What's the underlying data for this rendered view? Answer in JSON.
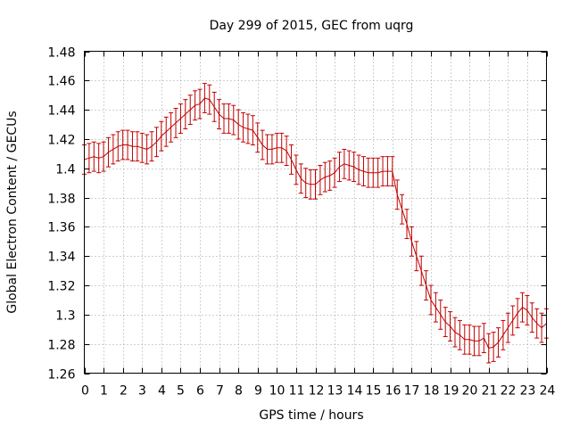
{
  "chart_data": {
    "type": "line",
    "title": "Day 299 of 2015, GEC from uqrg",
    "xlabel": "GPS time / hours",
    "ylabel": "Global Electron Content / GECUs",
    "xlim": [
      0,
      24
    ],
    "ylim": [
      1.26,
      1.48
    ],
    "xticks": [
      0,
      1,
      2,
      3,
      4,
      5,
      6,
      7,
      8,
      9,
      10,
      11,
      12,
      13,
      14,
      15,
      16,
      17,
      18,
      19,
      20,
      21,
      22,
      23,
      24
    ],
    "xtick_labels": [
      "0",
      "1",
      "2",
      "3",
      "4",
      "5",
      "6",
      "7",
      "8",
      "9",
      "10",
      "11",
      "12",
      "13",
      "14",
      "15",
      "16",
      "17",
      "18",
      "19",
      "20",
      "21",
      "22",
      "23",
      "24"
    ],
    "yticks": [
      1.26,
      1.28,
      1.3,
      1.32,
      1.34,
      1.36,
      1.38,
      1.4,
      1.42,
      1.44,
      1.46,
      1.48
    ],
    "ytick_labels": [
      "1.26",
      "1.28",
      "1.3",
      "1.32",
      "1.34",
      "1.36",
      "1.38",
      "1.4",
      "1.42",
      "1.44",
      "1.46",
      "1.48"
    ],
    "grid": true,
    "color": "#c00000",
    "series": [
      {
        "x": [
          0,
          0.25,
          0.5,
          0.75,
          1,
          1.25,
          1.5,
          1.75,
          2,
          2.25,
          2.5,
          2.75,
          3,
          3.25,
          3.5,
          3.75,
          4,
          4.25,
          4.5,
          4.75,
          5,
          5.25,
          5.5,
          5.75,
          6,
          6.25,
          6.5,
          6.75,
          7,
          7.25,
          7.5,
          7.75,
          8,
          8.25,
          8.5,
          8.75,
          9,
          9.25,
          9.5,
          9.75,
          10,
          10.25,
          10.5,
          10.75,
          11,
          11.25,
          11.5,
          11.75,
          12,
          12.25,
          12.5,
          12.75,
          13,
          13.25,
          13.5,
          13.75,
          14,
          14.25,
          14.5,
          14.75,
          15,
          15.25,
          15.5,
          15.75,
          16,
          16.25,
          16.5,
          16.75,
          17,
          17.25,
          17.5,
          17.75,
          18,
          18.25,
          18.5,
          18.75,
          19,
          19.25,
          19.5,
          19.75,
          20,
          20.25,
          20.5,
          20.75,
          21,
          21.25,
          21.5,
          21.75,
          22,
          22.25,
          22.5,
          22.75,
          23,
          23.25,
          23.5,
          23.75,
          24
        ],
        "y": [
          1.406,
          1.407,
          1.408,
          1.407,
          1.408,
          1.411,
          1.413,
          1.415,
          1.416,
          1.416,
          1.415,
          1.415,
          1.414,
          1.413,
          1.415,
          1.418,
          1.422,
          1.425,
          1.428,
          1.431,
          1.434,
          1.437,
          1.44,
          1.443,
          1.444,
          1.448,
          1.447,
          1.442,
          1.437,
          1.434,
          1.434,
          1.433,
          1.43,
          1.428,
          1.427,
          1.426,
          1.421,
          1.416,
          1.413,
          1.413,
          1.414,
          1.414,
          1.412,
          1.406,
          1.399,
          1.393,
          1.39,
          1.389,
          1.389,
          1.392,
          1.394,
          1.395,
          1.397,
          1.401,
          1.403,
          1.402,
          1.401,
          1.399,
          1.398,
          1.397,
          1.397,
          1.397,
          1.398,
          1.398,
          1.398,
          1.382,
          1.372,
          1.362,
          1.35,
          1.34,
          1.33,
          1.32,
          1.31,
          1.305,
          1.3,
          1.295,
          1.292,
          1.288,
          1.286,
          1.283,
          1.283,
          1.282,
          1.282,
          1.284,
          1.277,
          1.278,
          1.281,
          1.286,
          1.291,
          1.296,
          1.301,
          1.305,
          1.303,
          1.298,
          1.294,
          1.291,
          1.294
        ],
        "error": 0.01
      }
    ]
  }
}
